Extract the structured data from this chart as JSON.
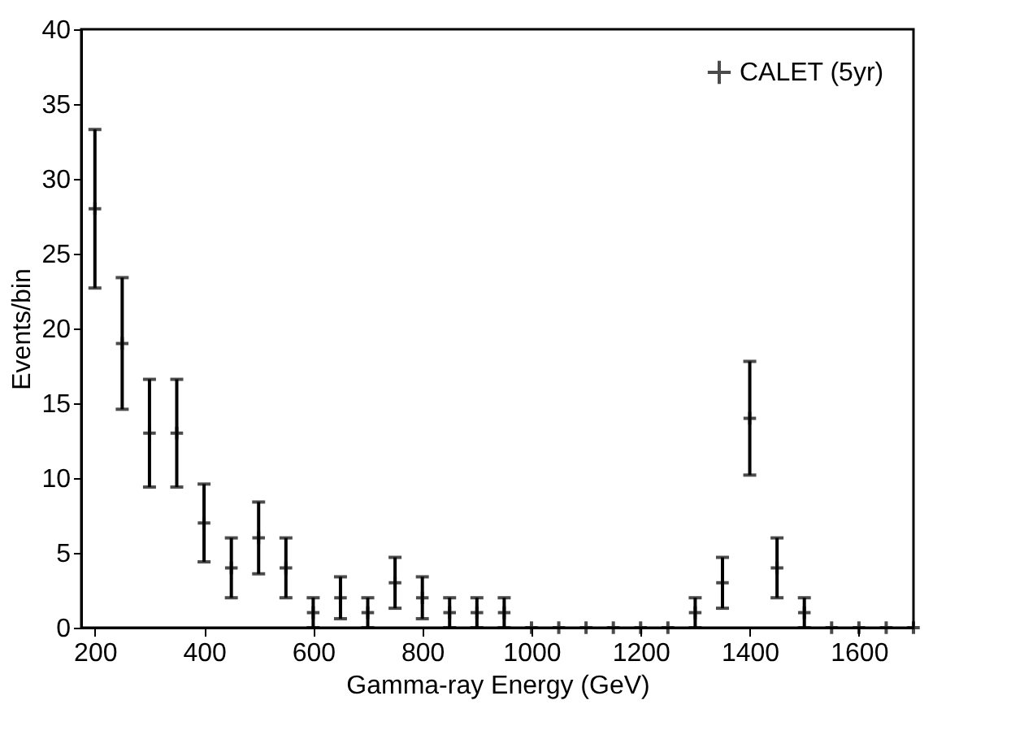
{
  "chart_data": {
    "type": "scatter",
    "xlabel": "Gamma-ray Energy (GeV)",
    "ylabel": "Events/bin",
    "x": [
      200,
      250,
      300,
      350,
      400,
      450,
      500,
      550,
      600,
      650,
      700,
      750,
      800,
      850,
      900,
      950,
      1000,
      1050,
      1100,
      1150,
      1200,
      1250,
      1300,
      1350,
      1400,
      1450,
      1500,
      1550,
      1600,
      1650,
      1700
    ],
    "series": [
      {
        "name": "CALET (5yr)",
        "color": "#000000",
        "values": [
          28,
          19,
          13,
          13,
          7,
          4,
          6,
          4,
          1,
          2,
          1,
          3,
          2,
          1,
          1,
          1,
          0,
          0,
          0,
          0,
          0,
          0,
          1,
          3,
          14,
          4,
          1,
          0,
          0,
          0,
          0
        ],
        "errors": [
          [
            22.7,
            33.3
          ],
          [
            14.6,
            23.4
          ],
          [
            9.4,
            16.6
          ],
          [
            9.4,
            16.6
          ],
          [
            4.4,
            9.6
          ],
          [
            2,
            6
          ],
          [
            3.6,
            8.4
          ],
          [
            2,
            6
          ],
          [
            0,
            2
          ],
          [
            0.6,
            3.4
          ],
          [
            0,
            2
          ],
          [
            1.3,
            4.7
          ],
          [
            0.6,
            3.4
          ],
          [
            0,
            2
          ],
          [
            0,
            2
          ],
          [
            0,
            2
          ],
          null,
          null,
          null,
          null,
          null,
          null,
          [
            0,
            2
          ],
          [
            1.3,
            4.7
          ],
          [
            10.2,
            17.8
          ],
          [
            2,
            6
          ],
          [
            0,
            2
          ],
          null,
          null,
          null,
          null
        ]
      }
    ],
    "xlim": [
      175,
      1700
    ],
    "xticks": [
      200,
      400,
      600,
      800,
      1000,
      1200,
      1400,
      1600
    ],
    "ylim": [
      0,
      40
    ],
    "yticks": [
      0,
      5,
      10,
      15,
      20,
      25,
      30,
      35,
      40
    ],
    "grid": false,
    "legend": "top right",
    "marker": "cross"
  }
}
